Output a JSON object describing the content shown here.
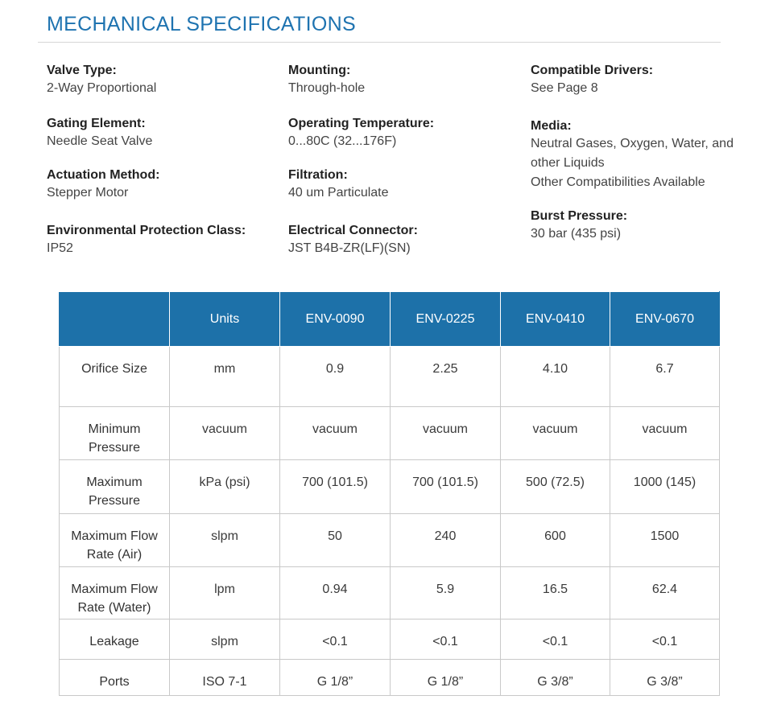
{
  "header": {
    "title": "MECHANICAL SPECIFICATIONS"
  },
  "specs": {
    "col1": [
      {
        "label": "Valve Type:",
        "values": [
          "2-Way Proportional"
        ]
      },
      {
        "label": "Gating Element:",
        "values": [
          "Needle Seat Valve"
        ]
      },
      {
        "label": "Actuation Method:",
        "values": [
          "Stepper Motor"
        ]
      },
      {
        "label": "Environmental Protection Class:",
        "values": [
          "IP52"
        ]
      }
    ],
    "col2": [
      {
        "label": "Mounting:",
        "values": [
          "Through-hole"
        ]
      },
      {
        "label": "Operating Temperature:",
        "values": [
          "0...80C (32...176F)"
        ]
      },
      {
        "label": "Filtration:",
        "values": [
          "40 um Particulate"
        ]
      },
      {
        "label": "Electrical Connector:",
        "values": [
          "JST B4B-ZR(LF)(SN)"
        ]
      }
    ],
    "col3": [
      {
        "label": "Compatible Drivers:",
        "values": [
          "See Page 8"
        ]
      },
      {
        "label": "Media:",
        "values": [
          "Neutral Gases, Oxygen, Water, and other Liquids",
          "Other Compatibilities Available"
        ]
      },
      {
        "label": "Burst Pressure:",
        "values": [
          "30 bar (435 psi)"
        ]
      }
    ]
  },
  "table": {
    "headers": [
      "",
      "Units",
      "ENV-0090",
      "ENV-0225",
      "ENV-0410",
      "ENV-0670"
    ],
    "rows": [
      {
        "label": "Orifice Size",
        "cells": [
          "mm",
          "0.9",
          "2.25",
          "4.10",
          "6.7"
        ]
      },
      {
        "label": "Minimum Pressure",
        "cells": [
          "vacuum",
          "vacuum",
          "vacuum",
          "vacuum",
          "vacuum"
        ]
      },
      {
        "label": "Maximum Pressure",
        "cells": [
          "kPa (psi)",
          "700 (101.5)",
          "700 (101.5)",
          "500 (72.5)",
          "1000 (145)"
        ]
      },
      {
        "label": "Maximum Flow Rate (Air)",
        "cells": [
          "slpm",
          "50",
          "240",
          "600",
          "1500"
        ]
      },
      {
        "label": "Maximum Flow Rate (Water)",
        "cells": [
          "lpm",
          "0.94",
          "5.9",
          "16.5",
          "62.4"
        ]
      },
      {
        "label": "Leakage",
        "cells": [
          "slpm",
          "<0.1",
          "<0.1",
          "<0.1",
          "<0.1"
        ]
      },
      {
        "label": "Ports",
        "cells": [
          "ISO 7-1",
          "G 1/8”",
          "G 1/8”",
          "G 3/8”",
          "G 3/8”"
        ]
      }
    ]
  }
}
